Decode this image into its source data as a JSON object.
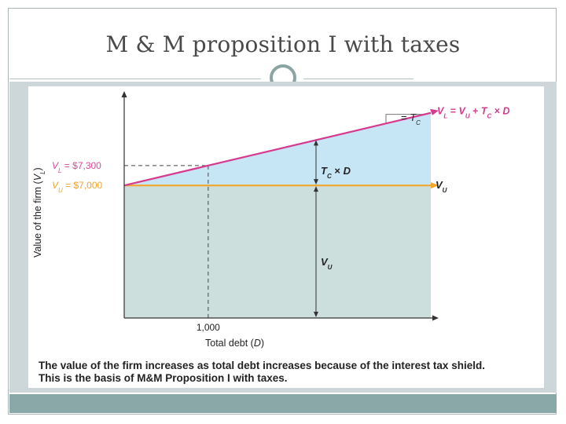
{
  "slide": {
    "title": "M & M proposition I with taxes"
  },
  "chart_data": {
    "type": "line",
    "xlabel": "Total debt (D)",
    "ylabel": "Value of the firm (VL)",
    "x_tick_labels": [
      "1,000"
    ],
    "y_tick_labels": [
      {
        "name": "VL",
        "text": "= $7,300",
        "value": 7300,
        "color": "#d9499a"
      },
      {
        "name": "VU",
        "text": "= $7,000",
        "value": 7000,
        "color": "#f0a42b"
      }
    ],
    "xlim": [
      0,
      3650
    ],
    "ylim": [
      5000,
      8400
    ],
    "series": [
      {
        "name": "VL = VU + TC × D",
        "color": "#d63a8e",
        "x": [
          0,
          3650
        ],
        "y": [
          7000,
          8095
        ]
      },
      {
        "name": "VU",
        "color": "#f2a62c",
        "x": [
          0,
          3650
        ],
        "y": [
          7000,
          7000
        ]
      }
    ],
    "reference": {
      "x": 1000,
      "y": 7300
    },
    "annotations": {
      "slope": "= TC",
      "shield": "TC × D",
      "base": "VU"
    },
    "colors": {
      "shield_fill": "#c6e6f5",
      "base_fill": "#cddfdc",
      "axis": "#333333"
    }
  },
  "caption": {
    "line1": "The value of the firm increases as total debt increases because of the interest tax shield.",
    "line2": "This is the basis of M&M Proposition I with taxes."
  }
}
